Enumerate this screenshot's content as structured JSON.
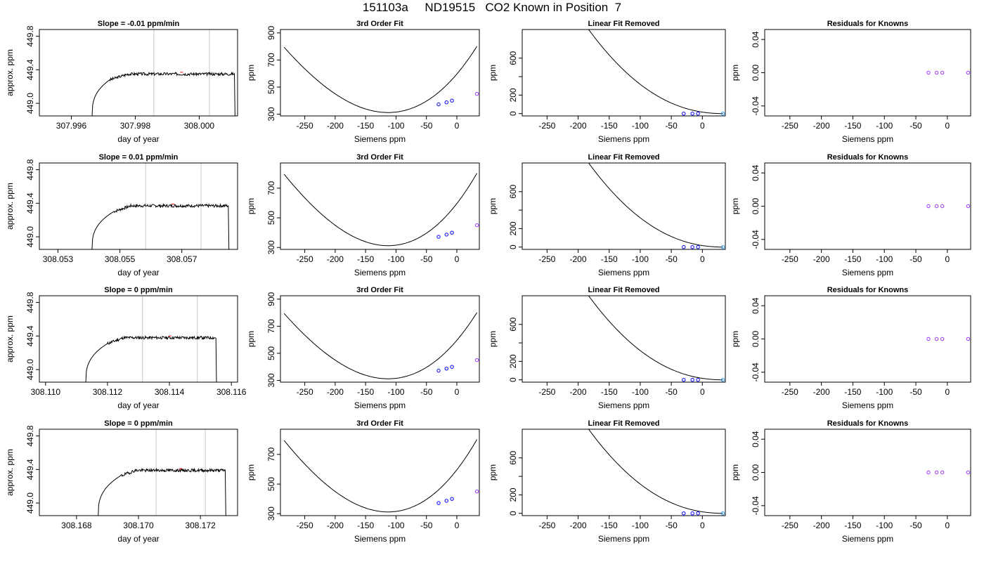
{
  "figure_title": "151103a     ND19515   CO2 Known in Position  7",
  "colors": {
    "line": "#000000",
    "vline": "#c8c8c8",
    "spike": "#ff0000",
    "point": "#0000ff",
    "point_alt": "#9b30ff",
    "point_last": "#2a9df4"
  },
  "chart_data": [
    {
      "type": "line",
      "title": "Slope =  -0.01  ppm/min",
      "xlabel": "day of year",
      "ylabel": "approx. ppm",
      "xlim": [
        307.995,
        308.0012
      ],
      "ylim": [
        448.85,
        449.88
      ],
      "xticks": [
        307.996,
        307.998,
        308.0
      ],
      "xticklabels": [
        "307.996",
        "307.998",
        "308.000"
      ],
      "yticks": [
        449.0,
        449.4,
        449.8
      ],
      "yticklabels": [
        "449.0",
        "449.4",
        "449.8"
      ],
      "vlines": [
        307.99858,
        308.00032
      ],
      "trace": {
        "x_start": 307.99665,
        "rise_end": 307.9972,
        "x_end": 308.0011,
        "drop_end": 308.00112,
        "plateau": 449.35,
        "base": 448.85,
        "seed": 3
      }
    },
    {
      "type": "line+scatter",
      "title": "3rd Order Fit",
      "xlabel": "Siemens ppm",
      "ylabel": "ppm",
      "xlim": [
        -290,
        37
      ],
      "ylim": [
        287,
        925
      ],
      "xticks": [
        -250,
        -200,
        -150,
        -100,
        -50,
        0
      ],
      "xticklabels": [
        "-250",
        "-200",
        "-150",
        "-100",
        "-50",
        "0"
      ],
      "yticks": [
        300,
        500,
        700,
        900
      ],
      "yticklabels": [
        "300",
        "500",
        "700",
        "900"
      ],
      "curve": {
        "x_min": -284,
        "x_max": 33,
        "x0": -113,
        "y0": 312,
        "a": 0.01997,
        "b": 2.03e-05
      },
      "points_x": [
        -30,
        -17,
        -8,
        33
      ],
      "points_y": [
        372,
        387,
        400,
        450
      ]
    },
    {
      "type": "line+scatter",
      "title": "Linear Fit Removed",
      "xlabel": "Siemens ppm",
      "ylabel": "ppm",
      "xlim": [
        -290,
        37
      ],
      "ylim": [
        -25,
        910
      ],
      "xticks": [
        -250,
        -200,
        -150,
        -100,
        -50,
        0
      ],
      "xticklabels": [
        "-250",
        "-200",
        "-150",
        "-100",
        "-50",
        "0"
      ],
      "yticks": [
        0,
        200,
        400,
        600
      ],
      "yticklabels": [
        "0",
        "200",
        "",
        "600"
      ],
      "curve": {
        "x_min": -284,
        "x_max": 33,
        "x0": 35,
        "k": 2100,
        "p": 2.2
      },
      "points_x": [
        -30,
        -16,
        -7,
        33
      ],
      "points_y": [
        0,
        0,
        0,
        0
      ]
    },
    {
      "type": "scatter",
      "title": "Residuals for Knowns",
      "xlabel": "Siemens ppm",
      "ylabel": "ppm",
      "xlim": [
        -290,
        37
      ],
      "ylim": [
        -0.052,
        0.052
      ],
      "xticks": [
        -250,
        -200,
        -150,
        -100,
        -50,
        0
      ],
      "xticklabels": [
        "-250",
        "-200",
        "-150",
        "-100",
        "-50",
        "0"
      ],
      "yticks": [
        -0.04,
        0.0,
        0.04
      ],
      "yticklabels": [
        "-0.04",
        "0.00",
        "0.04"
      ],
      "points_x": [
        -30,
        -17,
        -8,
        33
      ],
      "points_y": [
        0,
        0,
        0,
        0
      ]
    },
    {
      "type": "line",
      "title": "Slope =  0.01  ppm/min",
      "xlabel": "day of year",
      "ylabel": "approx. ppm",
      "xlim": [
        308.0524,
        308.0588
      ],
      "ylim": [
        448.85,
        449.88
      ],
      "xticks": [
        308.053,
        308.055,
        308.057
      ],
      "xticklabels": [
        "308.053",
        "308.055",
        "308.057"
      ],
      "yticks": [
        449.0,
        449.4,
        449.8
      ],
      "yticklabels": [
        "449.0",
        "449.4",
        "449.8"
      ],
      "vlines": [
        308.05583,
        308.05762
      ],
      "trace": {
        "x_start": 308.0541,
        "rise_end": 308.0548,
        "x_end": 308.0585,
        "drop_end": 308.05852,
        "plateau": 449.37,
        "base": 448.85,
        "seed": 7
      }
    },
    {
      "type": "line+scatter",
      "title": "3rd Order Fit",
      "xlabel": "Siemens ppm",
      "ylabel": "ppm",
      "xlim": [
        -290,
        37
      ],
      "ylim": [
        287,
        870
      ],
      "xticks": [
        -250,
        -200,
        -150,
        -100,
        -50,
        0
      ],
      "xticklabels": [
        "-250",
        "-200",
        "-150",
        "-100",
        "-50",
        "0"
      ],
      "yticks": [
        300,
        500,
        700
      ],
      "yticklabels": [
        "300",
        "500",
        "700"
      ],
      "curve": {
        "x_min": -284,
        "x_max": 33,
        "x0": -113,
        "y0": 312,
        "a": 0.01997,
        "b": 2.03e-05
      },
      "points_x": [
        -30,
        -17,
        -8,
        33
      ],
      "points_y": [
        372,
        387,
        400,
        450
      ]
    },
    {
      "type": "line+scatter",
      "title": "Linear Fit Removed",
      "xlabel": "Siemens ppm",
      "ylabel": "ppm",
      "xlim": [
        -290,
        37
      ],
      "ylim": [
        -25,
        910
      ],
      "xticks": [
        -250,
        -200,
        -150,
        -100,
        -50,
        0
      ],
      "xticklabels": [
        "-250",
        "-200",
        "-150",
        "-100",
        "-50",
        "0"
      ],
      "yticks": [
        0,
        200,
        400,
        600
      ],
      "yticklabels": [
        "0",
        "200",
        "",
        "600"
      ],
      "curve": {
        "x_min": -284,
        "x_max": 33,
        "x0": 35,
        "k": 2100,
        "p": 2.2
      },
      "points_x": [
        -30,
        -16,
        -7,
        33
      ],
      "points_y": [
        0,
        0,
        0,
        0
      ]
    },
    {
      "type": "scatter",
      "title": "Residuals for Knowns",
      "xlabel": "Siemens ppm",
      "ylabel": "ppm",
      "xlim": [
        -290,
        37
      ],
      "ylim": [
        -0.052,
        0.052
      ],
      "xticks": [
        -250,
        -200,
        -150,
        -100,
        -50,
        0
      ],
      "xticklabels": [
        "-250",
        "-200",
        "-150",
        "-100",
        "-50",
        "0"
      ],
      "yticks": [
        -0.04,
        0.0,
        0.04
      ],
      "yticklabels": [
        "-0.04",
        "0.00",
        "0.04"
      ],
      "points_x": [
        -30,
        -17,
        -8,
        33
      ],
      "points_y": [
        0,
        0,
        0,
        0
      ]
    },
    {
      "type": "line",
      "title": "Slope =  0  ppm/min",
      "xlabel": "day of year",
      "ylabel": "approx. ppm",
      "xlim": [
        308.1098,
        308.1162
      ],
      "ylim": [
        448.85,
        449.88
      ],
      "xticks": [
        308.11,
        308.112,
        308.114,
        308.116
      ],
      "xticklabels": [
        "308.110",
        "308.112",
        "308.114",
        "308.116"
      ],
      "yticks": [
        449.0,
        449.4,
        449.8
      ],
      "yticklabels": [
        "449.0",
        "449.4",
        "449.8"
      ],
      "vlines": [
        308.11313,
        308.1149
      ],
      "trace": {
        "x_start": 308.1113,
        "rise_end": 308.112,
        "x_end": 308.1155,
        "drop_end": 308.11552,
        "plateau": 449.38,
        "base": 448.85,
        "seed": 11
      }
    },
    {
      "type": "line+scatter",
      "title": "3rd Order Fit",
      "xlabel": "Siemens ppm",
      "ylabel": "ppm",
      "xlim": [
        -290,
        37
      ],
      "ylim": [
        287,
        925
      ],
      "xticks": [
        -250,
        -200,
        -150,
        -100,
        -50,
        0
      ],
      "xticklabels": [
        "-250",
        "-200",
        "-150",
        "-100",
        "-50",
        "0"
      ],
      "yticks": [
        300,
        500,
        700,
        900
      ],
      "yticklabels": [
        "300",
        "500",
        "700",
        "900"
      ],
      "curve": {
        "x_min": -284,
        "x_max": 33,
        "x0": -113,
        "y0": 312,
        "a": 0.01997,
        "b": 2.03e-05
      },
      "points_x": [
        -30,
        -17,
        -8,
        33
      ],
      "points_y": [
        372,
        387,
        400,
        450
      ]
    },
    {
      "type": "line+scatter",
      "title": "Linear Fit Removed",
      "xlabel": "Siemens ppm",
      "ylabel": "ppm",
      "xlim": [
        -290,
        37
      ],
      "ylim": [
        -25,
        910
      ],
      "xticks": [
        -250,
        -200,
        -150,
        -100,
        -50,
        0
      ],
      "xticklabels": [
        "-250",
        "-200",
        "-150",
        "-100",
        "-50",
        "0"
      ],
      "yticks": [
        0,
        200,
        400,
        600
      ],
      "yticklabels": [
        "0",
        "200",
        "",
        "600"
      ],
      "curve": {
        "x_min": -284,
        "x_max": 33,
        "x0": 35,
        "k": 2100,
        "p": 2.2
      },
      "points_x": [
        -30,
        -16,
        -7,
        33
      ],
      "points_y": [
        0,
        0,
        0,
        0
      ]
    },
    {
      "type": "scatter",
      "title": "Residuals for Knowns",
      "xlabel": "Siemens ppm",
      "ylabel": "ppm",
      "xlim": [
        -290,
        37
      ],
      "ylim": [
        -0.052,
        0.052
      ],
      "xticks": [
        -250,
        -200,
        -150,
        -100,
        -50,
        0
      ],
      "xticklabels": [
        "-250",
        "-200",
        "-150",
        "-100",
        "-50",
        "0"
      ],
      "yticks": [
        -0.04,
        0.0,
        0.04
      ],
      "yticklabels": [
        "-0.04",
        "0.00",
        "0.04"
      ],
      "points_x": [
        -30,
        -17,
        -8,
        33
      ],
      "points_y": [
        0,
        0,
        0,
        0
      ]
    },
    {
      "type": "line",
      "title": "Slope =  0  ppm/min",
      "xlabel": "day of year",
      "ylabel": "approx. ppm",
      "xlim": [
        308.1668,
        308.1732
      ],
      "ylim": [
        448.85,
        449.88
      ],
      "xticks": [
        308.168,
        308.17,
        308.172
      ],
      "xticklabels": [
        "308.168",
        "308.170",
        "308.172"
      ],
      "yticks": [
        449.0,
        449.4,
        449.8
      ],
      "yticklabels": [
        "449.0",
        "449.4",
        "449.8"
      ],
      "vlines": [
        308.17057,
        308.17216
      ],
      "trace": {
        "x_start": 308.1687,
        "rise_end": 308.1694,
        "x_end": 308.1728,
        "drop_end": 308.17282,
        "plateau": 449.39,
        "base": 448.85,
        "seed": 19
      }
    },
    {
      "type": "line+scatter",
      "title": "3rd Order Fit",
      "xlabel": "Siemens ppm",
      "ylabel": "ppm",
      "xlim": [
        -290,
        37
      ],
      "ylim": [
        287,
        870
      ],
      "xticks": [
        -250,
        -200,
        -150,
        -100,
        -50,
        0
      ],
      "xticklabels": [
        "-250",
        "-200",
        "-150",
        "-100",
        "-50",
        "0"
      ],
      "yticks": [
        300,
        500,
        700
      ],
      "yticklabels": [
        "300",
        "500",
        "700"
      ],
      "curve": {
        "x_min": -284,
        "x_max": 33,
        "x0": -113,
        "y0": 312,
        "a": 0.01997,
        "b": 2.03e-05
      },
      "points_x": [
        -30,
        -17,
        -8,
        33
      ],
      "points_y": [
        372,
        387,
        400,
        450
      ]
    },
    {
      "type": "line+scatter",
      "title": "Linear Fit Removed",
      "xlabel": "Siemens ppm",
      "ylabel": "ppm",
      "xlim": [
        -290,
        37
      ],
      "ylim": [
        -25,
        910
      ],
      "xticks": [
        -250,
        -200,
        -150,
        -100,
        -50,
        0
      ],
      "xticklabels": [
        "-250",
        "-200",
        "-150",
        "-100",
        "-50",
        "0"
      ],
      "yticks": [
        0,
        200,
        400,
        600
      ],
      "yticklabels": [
        "0",
        "200",
        "",
        "600"
      ],
      "curve": {
        "x_min": -284,
        "x_max": 33,
        "x0": 35,
        "k": 2100,
        "p": 2.2
      },
      "points_x": [
        -30,
        -16,
        -7,
        33
      ],
      "points_y": [
        0,
        0,
        0,
        0
      ]
    },
    {
      "type": "scatter",
      "title": "Residuals for Knowns",
      "xlabel": "Siemens ppm",
      "ylabel": "ppm",
      "xlim": [
        -290,
        37
      ],
      "ylim": [
        -0.052,
        0.052
      ],
      "xticks": [
        -250,
        -200,
        -150,
        -100,
        -50,
        0
      ],
      "xticklabels": [
        "-250",
        "-200",
        "-150",
        "-100",
        "-50",
        "0"
      ],
      "yticks": [
        -0.04,
        0.0,
        0.04
      ],
      "yticklabels": [
        "-0.04",
        "0.00",
        "0.04"
      ],
      "points_x": [
        -30,
        -17,
        -8,
        33
      ],
      "points_y": [
        0,
        0,
        0,
        0
      ]
    }
  ]
}
